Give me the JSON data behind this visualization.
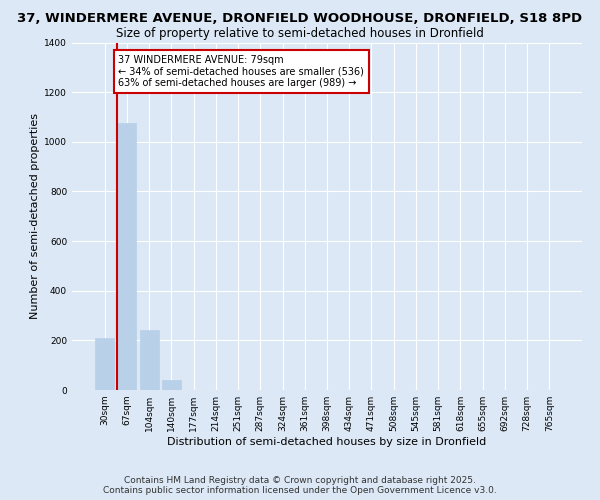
{
  "title_line1": "37, WINDERMERE AVENUE, DRONFIELD WOODHOUSE, DRONFIELD, S18 8PD",
  "title_line2": "Size of property relative to semi-detached houses in Dronfield",
  "xlabel": "Distribution of semi-detached houses by size in Dronfield",
  "ylabel": "Number of semi-detached properties",
  "categories": [
    "30sqm",
    "67sqm",
    "104sqm",
    "140sqm",
    "177sqm",
    "214sqm",
    "251sqm",
    "287sqm",
    "324sqm",
    "361sqm",
    "398sqm",
    "434sqm",
    "471sqm",
    "508sqm",
    "545sqm",
    "581sqm",
    "618sqm",
    "655sqm",
    "692sqm",
    "728sqm",
    "765sqm"
  ],
  "values": [
    210,
    1075,
    240,
    40,
    0,
    0,
    0,
    0,
    0,
    0,
    0,
    0,
    0,
    0,
    0,
    0,
    0,
    0,
    0,
    0,
    0
  ],
  "bar_color": "#b8d0e8",
  "annotation_line1": "37 WINDERMERE AVENUE: 79sqm",
  "annotation_line2": "← 34% of semi-detached houses are smaller (536)",
  "annotation_line3": "63% of semi-detached houses are larger (989) →",
  "annotation_box_color": "#ffffff",
  "annotation_box_edge": "#cc0000",
  "vline_color": "#cc0000",
  "vline_x": 0.575,
  "ylim": [
    0,
    1400
  ],
  "yticks": [
    0,
    200,
    400,
    600,
    800,
    1000,
    1200,
    1400
  ],
  "background_color": "#dce8f5",
  "plot_bg_color": "#dce8f5",
  "grid_color": "#ffffff",
  "footer_line1": "Contains HM Land Registry data © Crown copyright and database right 2025.",
  "footer_line2": "Contains public sector information licensed under the Open Government Licence v3.0.",
  "title_fontsize": 9.5,
  "subtitle_fontsize": 8.5,
  "axis_label_fontsize": 8,
  "tick_fontsize": 6.5,
  "footer_fontsize": 6.5
}
